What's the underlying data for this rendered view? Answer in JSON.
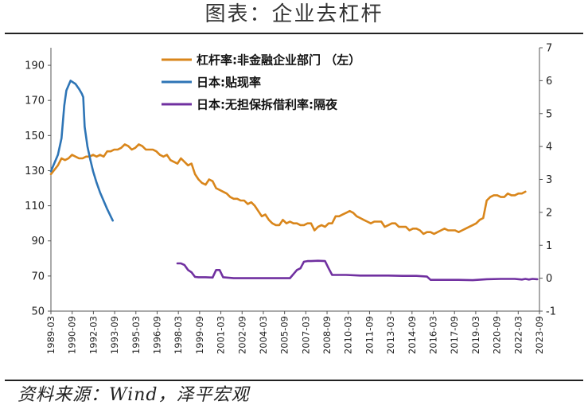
{
  "title": "图表：企业去杠杆",
  "source": "资料来源：Wind，泽平宏观",
  "chart_data": {
    "type": "line",
    "left_axis": {
      "range": [
        50,
        200
      ],
      "ticks": [
        50,
        70,
        90,
        110,
        130,
        150,
        170,
        190
      ]
    },
    "right_axis": {
      "range": [
        -1,
        7
      ],
      "ticks": [
        -1,
        0,
        1,
        2,
        3,
        4,
        5,
        6,
        7
      ]
    },
    "x_tick_labels": [
      "1989-03",
      "1990-09",
      "1992-03",
      "1993-09",
      "1995-03",
      "1996-09",
      "1998-03",
      "1999-09",
      "2001-03",
      "2002-09",
      "2004-03",
      "2005-09",
      "2007-03",
      "2008-09",
      "2010-03",
      "2011-09",
      "2013-03",
      "2014-09",
      "2016-03",
      "2017-09",
      "2019-03",
      "2020-09",
      "2022-03",
      "2023-09"
    ],
    "x_range": [
      1989.0,
      2023.75
    ],
    "legend_position": "top-center",
    "series": [
      {
        "name": "杠杆率:非金融企业部门 （左）",
        "axis": "left",
        "color": "#D9861B",
        "points": [
          [
            1989.0,
            128
          ],
          [
            1989.5,
            133
          ],
          [
            1989.75,
            137
          ],
          [
            1990.0,
            136
          ],
          [
            1990.25,
            137
          ],
          [
            1990.5,
            139
          ],
          [
            1990.75,
            138
          ],
          [
            1991.0,
            137
          ],
          [
            1991.25,
            137
          ],
          [
            1991.5,
            138
          ],
          [
            1991.75,
            138
          ],
          [
            1992.0,
            139
          ],
          [
            1992.25,
            138
          ],
          [
            1992.5,
            139
          ],
          [
            1992.75,
            138
          ],
          [
            1993.0,
            141
          ],
          [
            1993.25,
            141
          ],
          [
            1993.5,
            142
          ],
          [
            1993.75,
            142
          ],
          [
            1994.0,
            143
          ],
          [
            1994.25,
            145
          ],
          [
            1994.5,
            144
          ],
          [
            1994.75,
            142
          ],
          [
            1995.0,
            143
          ],
          [
            1995.25,
            145
          ],
          [
            1995.5,
            144
          ],
          [
            1995.75,
            142
          ],
          [
            1996.0,
            142
          ],
          [
            1996.25,
            142
          ],
          [
            1996.5,
            141
          ],
          [
            1996.75,
            139
          ],
          [
            1997.0,
            138
          ],
          [
            1997.25,
            139
          ],
          [
            1997.5,
            136
          ],
          [
            1997.75,
            135
          ],
          [
            1998.0,
            134
          ],
          [
            1998.25,
            137
          ],
          [
            1998.5,
            135
          ],
          [
            1998.75,
            133
          ],
          [
            1999.0,
            134
          ],
          [
            1999.25,
            128
          ],
          [
            1999.5,
            125
          ],
          [
            1999.75,
            123
          ],
          [
            2000.0,
            122
          ],
          [
            2000.25,
            125
          ],
          [
            2000.5,
            124
          ],
          [
            2000.75,
            120
          ],
          [
            2001.0,
            119
          ],
          [
            2001.25,
            118
          ],
          [
            2001.5,
            117
          ],
          [
            2001.75,
            115
          ],
          [
            2002.0,
            114
          ],
          [
            2002.25,
            114
          ],
          [
            2002.5,
            113
          ],
          [
            2002.75,
            113
          ],
          [
            2003.0,
            111
          ],
          [
            2003.25,
            112
          ],
          [
            2003.5,
            110
          ],
          [
            2003.75,
            107
          ],
          [
            2004.0,
            104
          ],
          [
            2004.25,
            105
          ],
          [
            2004.5,
            102
          ],
          [
            2004.75,
            100
          ],
          [
            2005.0,
            99
          ],
          [
            2005.25,
            99
          ],
          [
            2005.5,
            102
          ],
          [
            2005.75,
            100
          ],
          [
            2006.0,
            101
          ],
          [
            2006.25,
            100
          ],
          [
            2006.5,
            100
          ],
          [
            2006.75,
            99
          ],
          [
            2007.0,
            99
          ],
          [
            2007.25,
            100
          ],
          [
            2007.5,
            100
          ],
          [
            2007.75,
            96
          ],
          [
            2008.0,
            98
          ],
          [
            2008.25,
            99
          ],
          [
            2008.5,
            98
          ],
          [
            2008.75,
            100
          ],
          [
            2009.0,
            100
          ],
          [
            2009.25,
            104
          ],
          [
            2009.5,
            104
          ],
          [
            2009.75,
            105
          ],
          [
            2010.0,
            106
          ],
          [
            2010.25,
            107
          ],
          [
            2010.5,
            106
          ],
          [
            2010.75,
            104
          ],
          [
            2011.0,
            103
          ],
          [
            2011.25,
            102
          ],
          [
            2011.5,
            101
          ],
          [
            2011.75,
            100
          ],
          [
            2012.0,
            101
          ],
          [
            2012.25,
            101
          ],
          [
            2012.5,
            101
          ],
          [
            2012.75,
            98
          ],
          [
            2013.0,
            99
          ],
          [
            2013.25,
            100
          ],
          [
            2013.5,
            100
          ],
          [
            2013.75,
            98
          ],
          [
            2014.0,
            98
          ],
          [
            2014.25,
            98
          ],
          [
            2014.5,
            96
          ],
          [
            2014.75,
            97
          ],
          [
            2015.0,
            97
          ],
          [
            2015.25,
            96
          ],
          [
            2015.5,
            94
          ],
          [
            2015.75,
            95
          ],
          [
            2016.0,
            95
          ],
          [
            2016.25,
            94
          ],
          [
            2016.5,
            95
          ],
          [
            2016.75,
            96
          ],
          [
            2017.0,
            97
          ],
          [
            2017.25,
            96
          ],
          [
            2017.5,
            96
          ],
          [
            2017.75,
            96
          ],
          [
            2018.0,
            95
          ],
          [
            2018.25,
            96
          ],
          [
            2018.5,
            97
          ],
          [
            2018.75,
            98
          ],
          [
            2019.0,
            99
          ],
          [
            2019.25,
            100
          ],
          [
            2019.5,
            102
          ],
          [
            2019.75,
            103
          ],
          [
            2020.0,
            113
          ],
          [
            2020.25,
            115
          ],
          [
            2020.5,
            116
          ],
          [
            2020.75,
            116
          ],
          [
            2021.0,
            115
          ],
          [
            2021.25,
            115
          ],
          [
            2021.5,
            117
          ],
          [
            2021.75,
            116
          ],
          [
            2022.0,
            116
          ],
          [
            2022.25,
            117
          ],
          [
            2022.5,
            117
          ],
          [
            2022.75,
            118
          ]
        ]
      },
      {
        "name": "日本:贴现率",
        "axis": "right",
        "color": "#2E75B6",
        "points": [
          [
            1989.0,
            3.25
          ],
          [
            1989.5,
            3.75
          ],
          [
            1989.75,
            4.25
          ],
          [
            1989.95,
            5.25
          ],
          [
            1990.1,
            5.7
          ],
          [
            1990.4,
            6.0
          ],
          [
            1990.75,
            5.9
          ],
          [
            1991.0,
            5.75
          ],
          [
            1991.2,
            5.6
          ],
          [
            1991.3,
            5.5
          ],
          [
            1991.4,
            4.6
          ],
          [
            1991.6,
            4.0
          ],
          [
            1991.8,
            3.6
          ],
          [
            1992.0,
            3.25
          ],
          [
            1992.25,
            2.9
          ],
          [
            1992.5,
            2.6
          ],
          [
            1993.0,
            2.1
          ],
          [
            1993.4,
            1.75
          ]
        ]
      },
      {
        "name": "日本:无担保拆借利率:隔夜",
        "axis": "right",
        "color": "#7030A0",
        "points": [
          [
            1998.0,
            0.45
          ],
          [
            1998.25,
            0.45
          ],
          [
            1998.5,
            0.4
          ],
          [
            1998.75,
            0.25
          ],
          [
            1999.0,
            0.18
          ],
          [
            1999.25,
            0.04
          ],
          [
            1999.5,
            0.03
          ],
          [
            2000.0,
            0.03
          ],
          [
            2000.5,
            0.02
          ],
          [
            2000.75,
            0.25
          ],
          [
            2001.0,
            0.25
          ],
          [
            2001.25,
            0.03
          ],
          [
            2002.0,
            0.0
          ],
          [
            2004.0,
            0.0
          ],
          [
            2006.0,
            0.0
          ],
          [
            2006.5,
            0.25
          ],
          [
            2006.75,
            0.3
          ],
          [
            2007.0,
            0.5
          ],
          [
            2007.25,
            0.52
          ],
          [
            2007.5,
            0.52
          ],
          [
            2008.0,
            0.53
          ],
          [
            2008.5,
            0.52
          ],
          [
            2008.75,
            0.3
          ],
          [
            2009.0,
            0.1
          ],
          [
            2010.0,
            0.1
          ],
          [
            2011.0,
            0.08
          ],
          [
            2012.0,
            0.08
          ],
          [
            2013.0,
            0.08
          ],
          [
            2014.0,
            0.07
          ],
          [
            2015.0,
            0.07
          ],
          [
            2015.75,
            0.05
          ],
          [
            2016.0,
            -0.05
          ],
          [
            2017.0,
            -0.05
          ],
          [
            2018.0,
            -0.05
          ],
          [
            2019.0,
            -0.06
          ],
          [
            2020.0,
            -0.03
          ],
          [
            2021.0,
            -0.02
          ],
          [
            2022.0,
            -0.02
          ],
          [
            2022.5,
            -0.04
          ],
          [
            2022.75,
            -0.02
          ],
          [
            2023.0,
            -0.04
          ],
          [
            2023.25,
            -0.02
          ],
          [
            2023.6,
            -0.03
          ]
        ]
      }
    ]
  }
}
